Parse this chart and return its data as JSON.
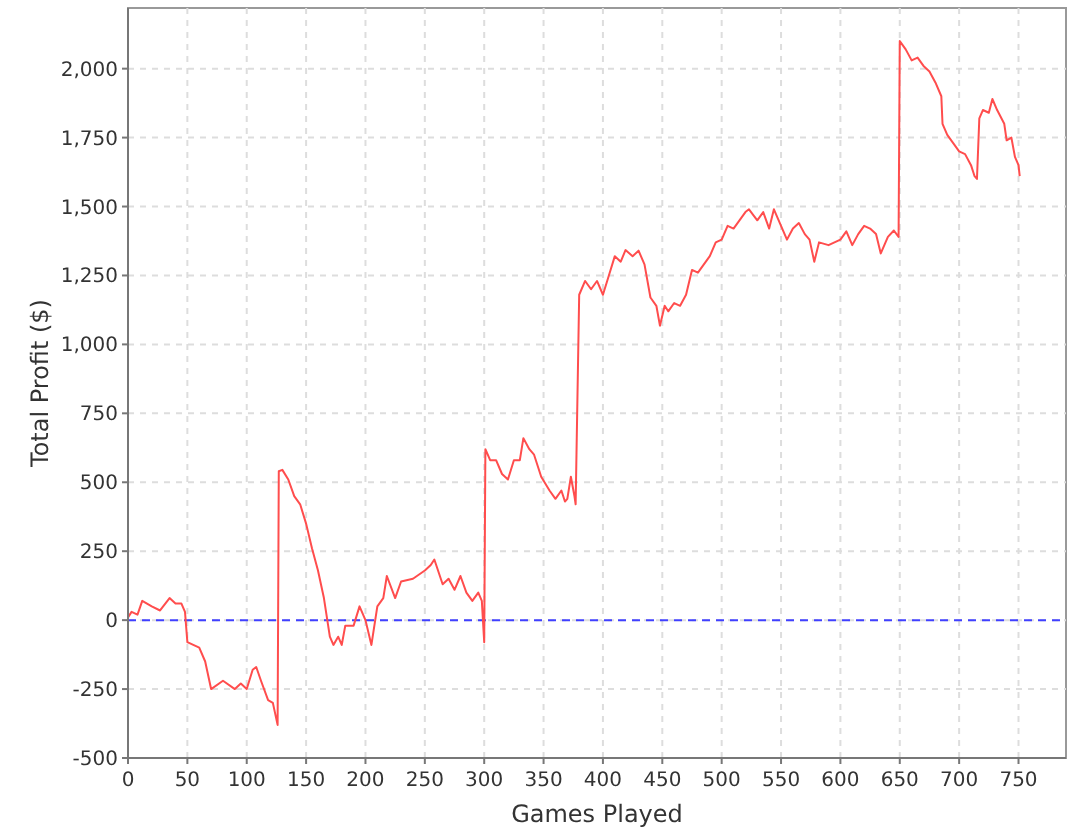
{
  "chart_data": {
    "type": "line",
    "xlabel": "Games Played",
    "ylabel": "Total Profit ($)",
    "xlim": [
      0,
      790
    ],
    "xticks": [
      0,
      50,
      100,
      150,
      200,
      250,
      300,
      350,
      400,
      450,
      500,
      550,
      600,
      650,
      700,
      750
    ],
    "ylim": [
      -500,
      2220
    ],
    "yticks": [
      {
        "value": -500,
        "label": "-500"
      },
      {
        "value": -250,
        "label": "-250"
      },
      0,
      250,
      500,
      750,
      {
        "value": 1000,
        "label": "1,000"
      },
      {
        "value": 1250,
        "label": "1,250"
      },
      {
        "value": 1500,
        "label": "1,500"
      },
      {
        "value": 1750,
        "label": "1,750"
      },
      {
        "value": 2000,
        "label": "2,000"
      }
    ],
    "grid": true,
    "marker": "none",
    "line_style": "solid",
    "ref_lines": [
      {
        "axis": "y",
        "value": 0,
        "color": "#4040ff",
        "line_style": "dashed"
      }
    ],
    "series": [
      {
        "color": "#ff4d4d",
        "x": [
          0,
          3,
          8,
          12,
          20,
          27,
          35,
          40,
          45,
          48,
          50,
          55,
          60,
          65,
          70,
          80,
          90,
          95,
          100,
          105,
          108,
          112,
          118,
          122,
          126,
          127,
          130,
          135,
          140,
          145,
          150,
          155,
          160,
          165,
          170,
          173,
          177,
          180,
          183,
          190,
          195,
          200,
          205,
          210,
          215,
          218,
          225,
          230,
          240,
          250,
          255,
          258,
          265,
          270,
          275,
          280,
          285,
          290,
          295,
          298,
          300,
          301,
          305,
          310,
          315,
          320,
          325,
          330,
          333,
          338,
          342,
          348,
          355,
          360,
          365,
          368,
          370,
          373,
          376,
          377,
          380,
          385,
          390,
          395,
          400,
          405,
          410,
          415,
          419,
          425,
          430,
          435,
          440,
          445,
          448,
          452,
          455,
          460,
          465,
          470,
          475,
          480,
          490,
          495,
          500,
          505,
          510,
          515,
          520,
          523,
          530,
          535,
          540,
          544,
          550,
          555,
          560,
          565,
          570,
          574,
          578,
          582,
          590,
          600,
          605,
          610,
          615,
          620,
          625,
          630,
          634,
          640,
          645,
          649,
          650,
          655,
          660,
          665,
          670,
          675,
          680,
          685,
          686,
          690,
          695,
          700,
          705,
          710,
          713,
          715,
          717,
          720,
          725,
          728,
          732,
          738,
          740,
          744,
          747,
          750,
          751
        ],
        "values": [
          10,
          30,
          20,
          70,
          50,
          35,
          80,
          60,
          60,
          30,
          -80,
          -90,
          -100,
          -150,
          -250,
          -220,
          -250,
          -230,
          -250,
          -180,
          -170,
          -220,
          -290,
          -300,
          -380,
          540,
          545,
          510,
          450,
          420,
          350,
          260,
          180,
          80,
          -60,
          -90,
          -60,
          -90,
          -20,
          -20,
          50,
          0,
          -90,
          50,
          80,
          160,
          80,
          140,
          150,
          180,
          200,
          220,
          130,
          150,
          110,
          160,
          100,
          70,
          100,
          70,
          -80,
          620,
          580,
          580,
          530,
          510,
          580,
          580,
          660,
          620,
          600,
          520,
          470,
          440,
          470,
          430,
          440,
          520,
          450,
          420,
          1180,
          1230,
          1200,
          1230,
          1180,
          1250,
          1320,
          1300,
          1342,
          1320,
          1340,
          1290,
          1170,
          1140,
          1068,
          1140,
          1120,
          1150,
          1140,
          1180,
          1270,
          1260,
          1320,
          1370,
          1380,
          1430,
          1420,
          1450,
          1480,
          1490,
          1450,
          1480,
          1420,
          1490,
          1430,
          1380,
          1420,
          1440,
          1400,
          1380,
          1300,
          1370,
          1360,
          1380,
          1410,
          1360,
          1400,
          1430,
          1420,
          1400,
          1330,
          1390,
          1413,
          1390,
          2100,
          2070,
          2030,
          2040,
          2010,
          1990,
          1950,
          1900,
          1800,
          1760,
          1730,
          1700,
          1690,
          1650,
          1610,
          1600,
          1820,
          1850,
          1840,
          1890,
          1850,
          1800,
          1740,
          1750,
          1680,
          1650,
          1610
        ]
      }
    ]
  }
}
